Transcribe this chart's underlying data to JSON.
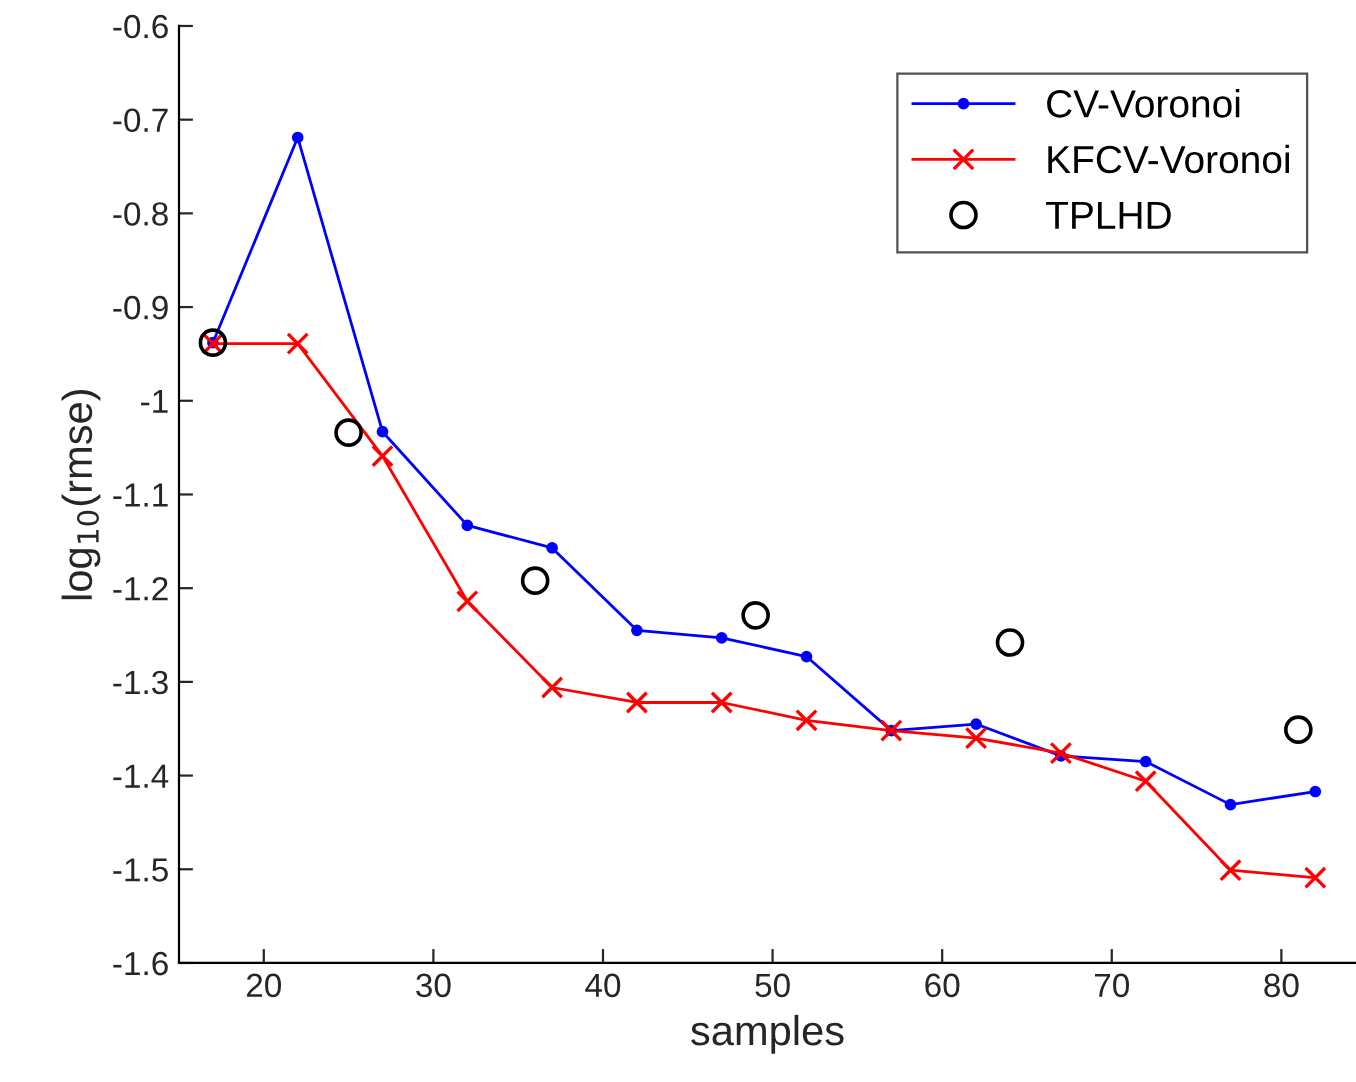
{
  "chart_data": {
    "type": "line",
    "xlabel": "samples",
    "ylabel": "log$_{10}$(rmse)",
    "xlim": [
      15,
      84.4
    ],
    "ylim": [
      -1.6,
      -0.6
    ],
    "xticks": [
      20,
      30,
      40,
      50,
      60,
      70,
      80
    ],
    "yticks": [
      -1.6,
      -1.5,
      -1.4,
      -1.3,
      -1.2,
      -1.1,
      -1,
      -0.9,
      -0.8,
      -0.7,
      -0.6
    ],
    "grid": false,
    "legend": "top right",
    "series": [
      {
        "name": "CV-Voronoi",
        "color": "#0000ff",
        "marker": "circle",
        "x": [
          17,
          22,
          27,
          32,
          37,
          42,
          47,
          52,
          57,
          62,
          67,
          72,
          77,
          82
        ],
        "values": [
          -0.938,
          -0.719,
          -1.033,
          -1.133,
          -1.157,
          -1.245,
          -1.253,
          -1.273,
          -1.352,
          -1.345,
          -1.379,
          -1.385,
          -1.431,
          -1.417
        ]
      },
      {
        "name": "KFCV-Voronoi",
        "color": "#ff0000",
        "marker": "cross",
        "x": [
          17,
          22,
          27,
          32,
          37,
          42,
          47,
          52,
          57,
          62,
          67,
          72,
          77,
          82
        ],
        "values": [
          -0.939,
          -0.939,
          -1.059,
          -1.214,
          -1.306,
          -1.322,
          -1.322,
          -1.341,
          -1.352,
          -1.36,
          -1.376,
          -1.406,
          -1.501,
          -1.509
        ]
      },
      {
        "name": "TPLHD",
        "type": "scatter",
        "color": "#000000",
        "marker": "circle",
        "x": [
          17,
          25,
          36,
          49,
          64,
          81
        ],
        "values": [
          -0.938,
          -1.034,
          -1.192,
          -1.229,
          -1.258,
          -1.351
        ]
      }
    ]
  }
}
